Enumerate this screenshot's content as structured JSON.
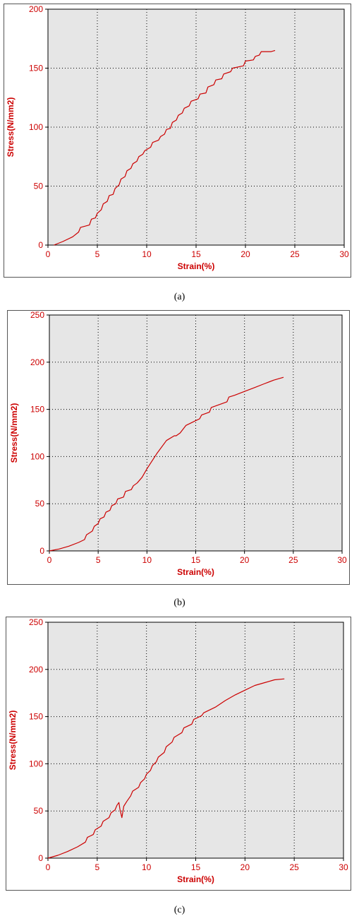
{
  "colors": {
    "line": "#cc0000",
    "axis_text": "#cc0000",
    "plot_bg": "#e6e6e6",
    "frame_bg": "#ffffff",
    "grid": "#000000"
  },
  "captions": [
    "(a)",
    "(b)",
    "(c)"
  ],
  "chart_data": [
    {
      "type": "line",
      "xlabel": "Strain(%)",
      "ylabel": "Stress(N/mm2)",
      "xlim": [
        0,
        30
      ],
      "ylim": [
        0,
        200
      ],
      "xticks": [
        0,
        5,
        10,
        15,
        20,
        25,
        30
      ],
      "yticks": [
        0,
        50,
        100,
        150,
        200
      ],
      "grid": true,
      "series": [
        {
          "x": [
            0.6,
            1.5,
            2.5,
            3.1,
            3.3,
            4.2,
            4.4,
            4.8,
            5.0,
            5.4,
            5.6,
            6.0,
            6.2,
            6.6,
            6.8,
            7.2,
            7.4,
            7.8,
            8.0,
            8.4,
            8.6,
            9.0,
            9.2,
            9.6,
            9.8,
            10.4,
            10.6,
            11.2,
            11.4,
            11.8,
            12.0,
            12.4,
            12.6,
            13.0,
            13.2,
            13.6,
            13.8,
            14.3,
            14.5,
            15.2,
            15.4,
            16.0,
            16.2,
            16.8,
            17.0,
            17.6,
            17.8,
            18.5,
            18.7,
            19.8,
            20.0,
            20.8,
            21.0,
            21.4,
            21.6,
            22.6,
            23.0
          ],
          "y": [
            0,
            3,
            7,
            11,
            15,
            17,
            22,
            23,
            27,
            30,
            35,
            37,
            42,
            43,
            48,
            51,
            56,
            58,
            63,
            65,
            69,
            71,
            75,
            77,
            80,
            83,
            87,
            89,
            92,
            94,
            98,
            99,
            104,
            106,
            110,
            112,
            116,
            118,
            122,
            124,
            128,
            129,
            134,
            136,
            140,
            141,
            145,
            147,
            150,
            152,
            156,
            157,
            160,
            161,
            164,
            164,
            165
          ]
        }
      ]
    },
    {
      "type": "line",
      "xlabel": "Strain(%)",
      "ylabel": "Stress(N/mm2)",
      "xlim": [
        0,
        30
      ],
      "ylim": [
        0,
        250
      ],
      "xticks": [
        0,
        5,
        10,
        15,
        20,
        25,
        30
      ],
      "yticks": [
        0,
        50,
        100,
        150,
        200,
        250
      ],
      "grid": true,
      "series": [
        {
          "x": [
            0,
            1,
            2,
            3,
            3.6,
            3.8,
            4.4,
            4.6,
            5.0,
            5.2,
            5.6,
            5.8,
            6.2,
            6.4,
            6.8,
            7.0,
            7.6,
            7.8,
            8.4,
            8.6,
            9.0,
            9.5,
            10.0,
            11.0,
            12.0,
            12.8,
            13.0,
            13.4,
            14.0,
            15.0,
            15.4,
            15.6,
            16.4,
            16.6,
            17.4,
            18.2,
            18.4,
            19.0,
            20.0,
            21.0,
            22.0,
            23.0,
            24.0
          ],
          "y": [
            0,
            2,
            5,
            9,
            12,
            17,
            21,
            26,
            29,
            34,
            36,
            41,
            43,
            48,
            50,
            55,
            57,
            63,
            65,
            69,
            72,
            78,
            87,
            103,
            117,
            122,
            122,
            125,
            133,
            138,
            140,
            144,
            147,
            152,
            155,
            158,
            163,
            165,
            169,
            173,
            177,
            181,
            184
          ]
        }
      ]
    },
    {
      "type": "line",
      "xlabel": "Strain(%)",
      "ylabel": "Stress(N/mm2)",
      "xlim": [
        0,
        30
      ],
      "ylim": [
        0,
        250
      ],
      "xticks": [
        0,
        5,
        10,
        15,
        20,
        25,
        30
      ],
      "yticks": [
        0,
        50,
        100,
        150,
        200,
        250
      ],
      "grid": true,
      "series": [
        {
          "x": [
            0,
            1,
            2,
            3,
            3.8,
            4.0,
            4.6,
            4.8,
            5.4,
            5.6,
            6.2,
            6.4,
            6.8,
            7.0,
            7.2,
            7.3,
            7.5,
            7.7,
            8.0,
            8.4,
            8.6,
            9.2,
            9.4,
            9.8,
            10.0,
            10.4,
            10.6,
            11.0,
            11.2,
            11.8,
            12.0,
            12.6,
            12.8,
            13.6,
            13.8,
            14.6,
            14.8,
            15.6,
            15.8,
            17.0,
            18.0,
            19.0,
            20.0,
            21.0,
            22.0,
            23.0,
            24.0
          ],
          "y": [
            0,
            3,
            7,
            12,
            17,
            22,
            25,
            30,
            34,
            39,
            43,
            48,
            51,
            56,
            59,
            52,
            43,
            55,
            60,
            66,
            71,
            75,
            80,
            84,
            89,
            93,
            98,
            102,
            107,
            112,
            118,
            123,
            128,
            133,
            138,
            142,
            147,
            151,
            154,
            160,
            167,
            173,
            178,
            183,
            186,
            189,
            190
          ]
        }
      ]
    }
  ]
}
